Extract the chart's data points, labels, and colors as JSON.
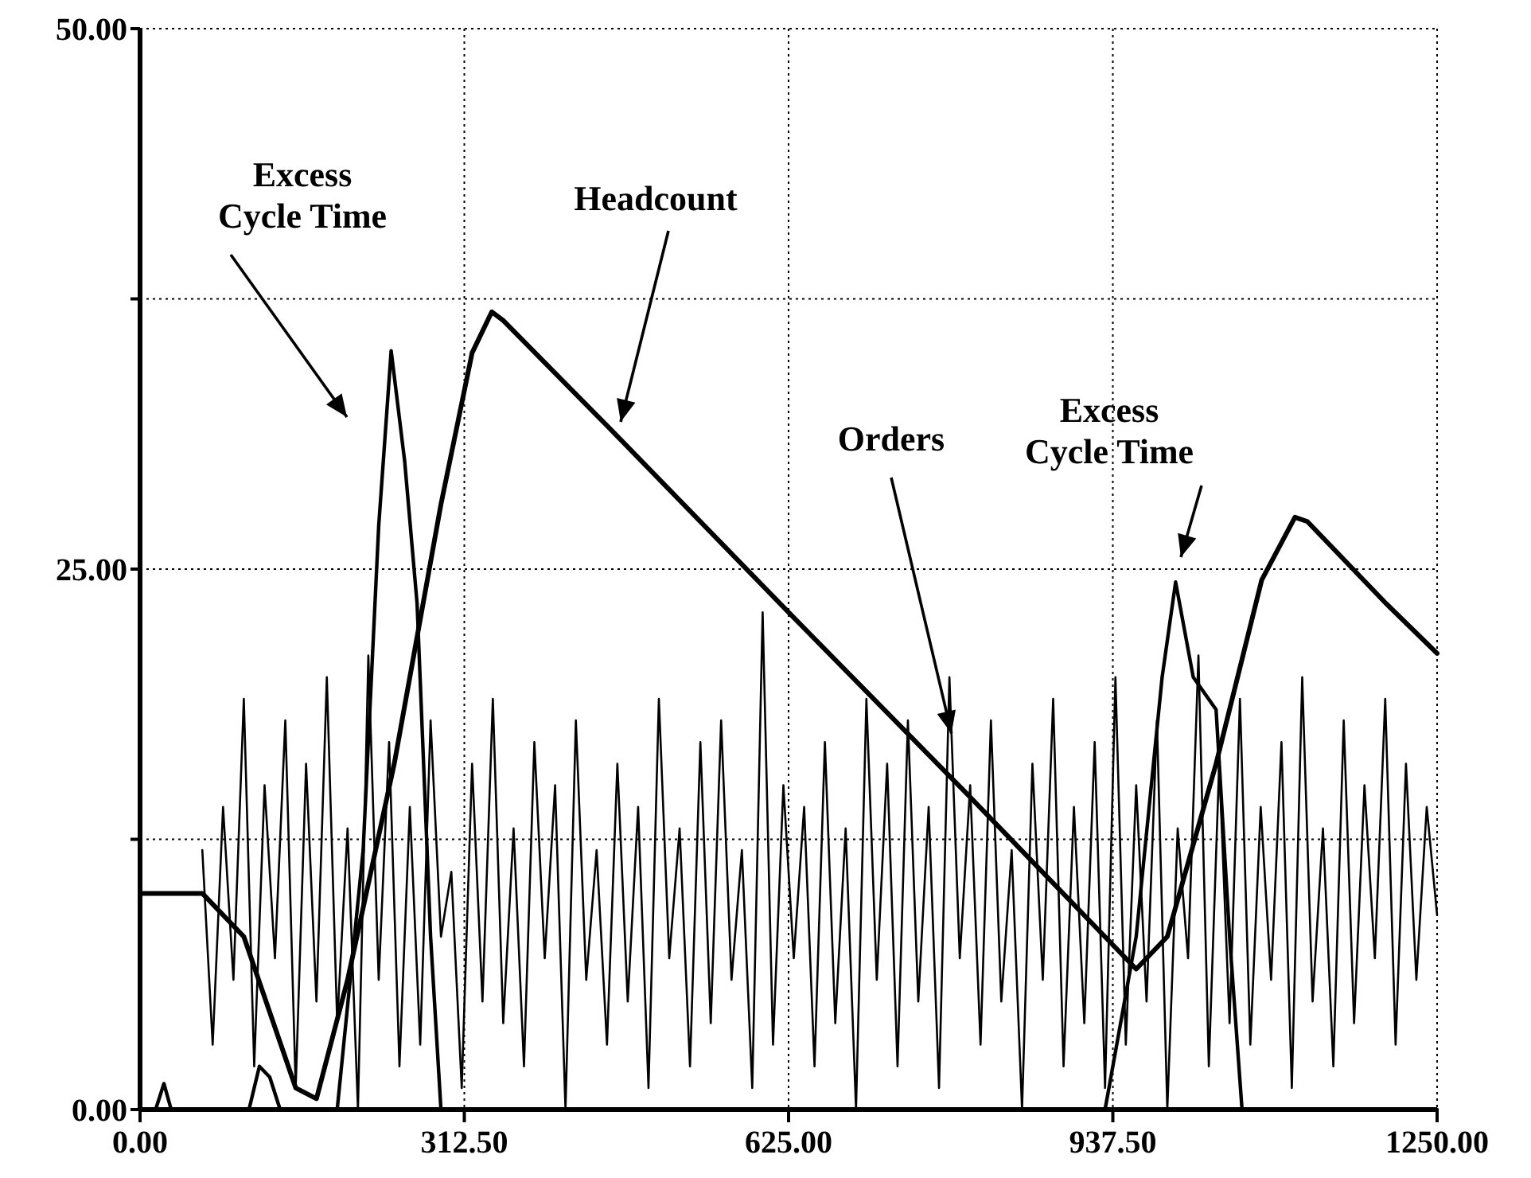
{
  "chart_data": {
    "type": "line",
    "xlim": [
      0,
      1250
    ],
    "ylim": [
      0,
      50
    ],
    "xticks": [
      {
        "value": 0,
        "label": "0.00"
      },
      {
        "value": 312.5,
        "label": "312.50"
      },
      {
        "value": 625,
        "label": "625.00"
      },
      {
        "value": 937.5,
        "label": "937.50"
      },
      {
        "value": 1250,
        "label": "1250.00"
      }
    ],
    "yticks": [
      {
        "value": 0,
        "label": "0.00"
      },
      {
        "value": 12.5,
        "label": null
      },
      {
        "value": 25,
        "label": "25.00"
      },
      {
        "value": 37.5,
        "label": null
      },
      {
        "value": 50,
        "label": "50.00"
      }
    ],
    "grid": true,
    "legend": false,
    "line_style": "solid",
    "marker": "none",
    "series": [
      {
        "color": "#000000",
        "x": [
          60,
          70,
          80,
          90,
          100,
          110,
          120,
          130,
          140,
          150,
          160,
          170,
          180,
          190,
          200,
          210,
          220,
          230,
          240,
          250,
          260,
          270,
          280,
          290,
          300,
          310,
          320,
          330,
          340,
          350,
          360,
          370,
          380,
          390,
          400,
          410,
          420,
          430,
          440,
          450,
          460,
          470,
          480,
          490,
          500,
          510,
          520,
          530,
          540,
          550,
          560,
          570,
          580,
          590,
          600,
          610,
          620,
          630,
          640,
          650,
          660,
          670,
          680,
          690,
          700,
          710,
          720,
          730,
          740,
          750,
          760,
          770,
          780,
          790,
          800,
          810,
          820,
          830,
          840,
          850,
          860,
          870,
          880,
          890,
          900,
          910,
          920,
          930,
          940,
          950,
          960,
          970,
          980,
          990,
          1000,
          1010,
          1020,
          1030,
          1040,
          1050,
          1060,
          1070,
          1080,
          1090,
          1100,
          1110,
          1120,
          1130,
          1140,
          1150,
          1160,
          1170,
          1180,
          1190,
          1200,
          1210,
          1220,
          1230,
          1240,
          1250
        ],
        "values": [
          12,
          3,
          14,
          6,
          19,
          2,
          15,
          7,
          18,
          1,
          16,
          5,
          20,
          4,
          13,
          0,
          21,
          6,
          17,
          2,
          14,
          3,
          18,
          8,
          11,
          1,
          16,
          5,
          19,
          4,
          13,
          2,
          17,
          7,
          15,
          0,
          18,
          6,
          12,
          3,
          16,
          5,
          14,
          1,
          19,
          7,
          13,
          2,
          17,
          4,
          18,
          6,
          12,
          1,
          23,
          3,
          15,
          7,
          14,
          2,
          17,
          4,
          13,
          0,
          19,
          6,
          16,
          2,
          18,
          5,
          14,
          1,
          20,
          7,
          15,
          3,
          18,
          5,
          12,
          0,
          16,
          6,
          19,
          2,
          14,
          4,
          17,
          1,
          20,
          3,
          15,
          5,
          18,
          0,
          13,
          7,
          21,
          2,
          16,
          4,
          19,
          3,
          14,
          6,
          17,
          1,
          20,
          5,
          13,
          2,
          18,
          4,
          15,
          7,
          19,
          3,
          16,
          6,
          14,
          9
        ]
      },
      {
        "color": "#000000",
        "x": [
          0,
          15,
          23,
          30,
          105,
          115,
          125,
          135,
          190,
          215,
          230,
          242,
          255,
          267,
          280,
          290,
          930,
          960,
          985,
          998,
          1015,
          1037,
          1050,
          1062,
          1250
        ],
        "values": [
          0,
          0,
          1.2,
          0,
          0,
          2,
          1.5,
          0,
          0,
          12,
          27,
          35.1,
          30,
          23.4,
          8,
          0,
          0,
          8,
          20,
          24.4,
          20,
          18.5,
          8,
          0,
          0
        ]
      },
      {
        "color": "#000000",
        "x": [
          0,
          60,
          100,
          150,
          170,
          200,
          245,
          290,
          320,
          339,
          350,
          463,
          623,
          799,
          960,
          990,
          1037,
          1081,
          1113,
          1125,
          1201,
          1250
        ],
        "values": [
          10,
          10,
          8,
          1,
          0.5,
          6,
          16,
          28,
          35,
          36.9,
          36.5,
          31,
          23.1,
          14.5,
          6.5,
          8,
          16,
          24.5,
          27.4,
          27.2,
          23.4,
          21.1
        ]
      }
    ],
    "annotations": [
      "Excess Cycle Time",
      "Headcount",
      {
        "text": "Orders",
        "x": 782,
        "y": 17.4
      },
      "Excess Cycle Time"
    ]
  }
}
